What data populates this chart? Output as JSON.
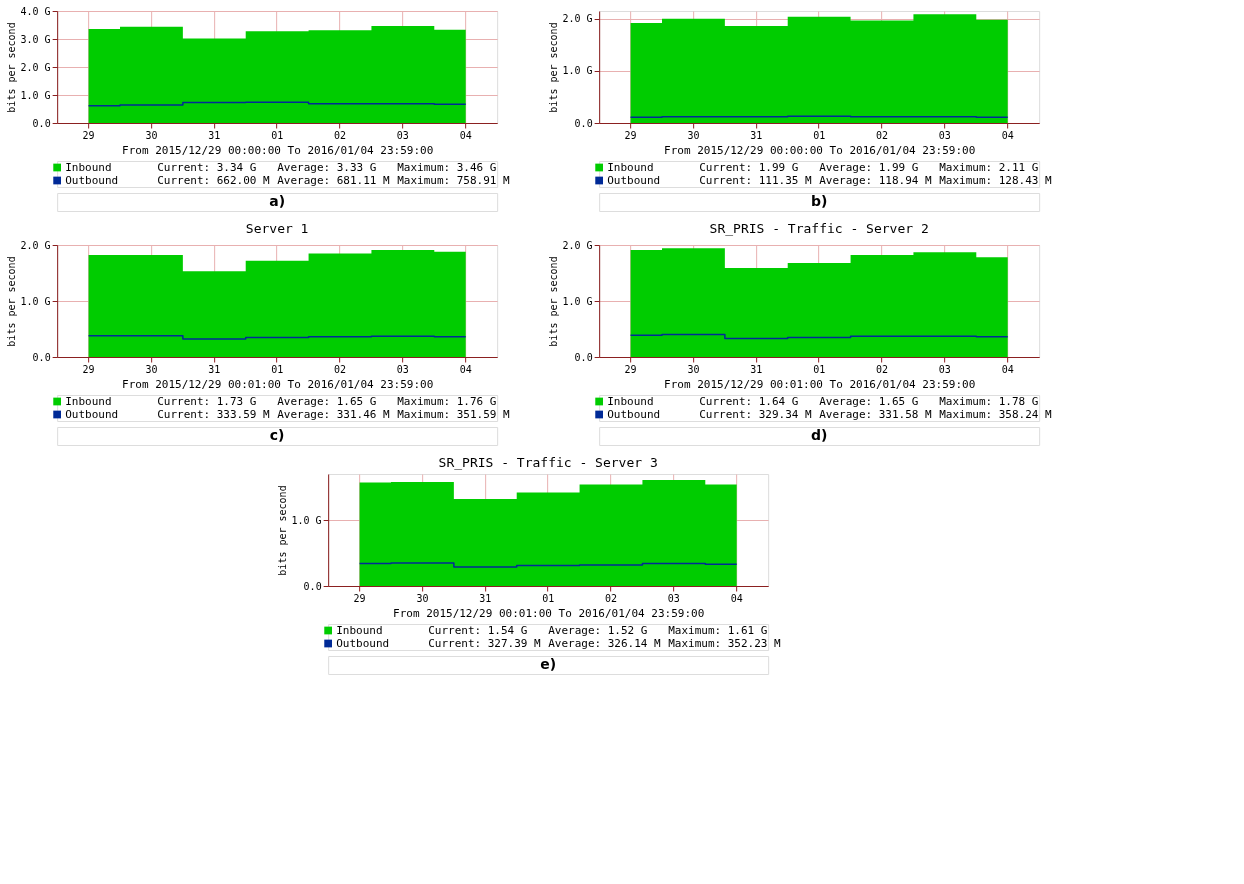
{
  "chart_data": [
    {
      "type": "area",
      "categories": [
        "29",
        "30",
        "31",
        "01",
        "02",
        "03",
        "04"
      ],
      "xlabel": "From 2015/12/29 00:00:00 To 2016/01/04 23:59:00",
      "ylabel": "bits per second",
      "ylim": [
        0,
        4.0
      ],
      "yticks": [
        {
          "value": 0,
          "label": "0.0"
        },
        {
          "value": 1,
          "label": "1.0 G"
        },
        {
          "value": 2,
          "label": "2.0 G"
        },
        {
          "value": 3,
          "label": "3.0 G"
        },
        {
          "value": 4,
          "label": "4.0 G"
        }
      ],
      "grid": true,
      "legend": "bottom",
      "series": [
        {
          "name": "Inbound",
          "type": "area",
          "color": "#00cc00",
          "values": [
            3.36,
            3.44,
            3.02,
            3.28,
            3.31,
            3.46,
            3.33
          ]
        },
        {
          "name": "Outbound",
          "type": "line",
          "color": "#002a97",
          "values": [
            0.62,
            0.64,
            0.73,
            0.74,
            0.69,
            0.69,
            0.67
          ]
        }
      ],
      "annotations": [
        "Current:    3.34 G",
        "Average:    3.33 G",
        "Maximum:    3.46 G",
        "Current:  662.00 M",
        "Average:  681.11 M",
        "Maximum:  758.91 M",
        "a)"
      ]
    },
    {
      "type": "area",
      "categories": [
        "29",
        "30",
        "31",
        "01",
        "02",
        "03",
        "04"
      ],
      "xlabel": "From 2015/12/29 00:00:00 To 2016/01/04 23:59:00",
      "ylabel": "bits per second",
      "ylim": [
        0,
        2.15
      ],
      "yticks": [
        {
          "value": 0,
          "label": "0.0"
        },
        {
          "value": 1,
          "label": "1.0 G"
        },
        {
          "value": 2,
          "label": "2.0 G"
        }
      ],
      "grid": true,
      "legend": "bottom",
      "series": [
        {
          "name": "Inbound",
          "type": "area",
          "color": "#00cc00",
          "values": [
            1.92,
            2.0,
            1.86,
            2.04,
            1.97,
            2.09,
            1.98
          ]
        },
        {
          "name": "Outbound",
          "type": "line",
          "color": "#002a97",
          "values": [
            0.11,
            0.12,
            0.12,
            0.13,
            0.12,
            0.12,
            0.11
          ]
        }
      ],
      "annotations": [
        "Current:    1.99 G",
        "Average:    1.99 G",
        "Maximum:    2.11 G",
        "Current:  111.35 M",
        "Average:  118.94 M",
        "Maximum:  128.43 M",
        "b)"
      ]
    },
    {
      "type": "area",
      "title": "Server 1",
      "categories": [
        "29",
        "30",
        "31",
        "01",
        "02",
        "03",
        "04"
      ],
      "xlabel": "From 2015/12/29 00:01:00 To 2016/01/04 23:59:00",
      "ylabel": "bits per second",
      "ylim": [
        0,
        2.0
      ],
      "yticks": [
        {
          "value": 0,
          "label": "0.0"
        },
        {
          "value": 1,
          "label": "1.0 G"
        },
        {
          "value": 2,
          "label": "2.0 G"
        }
      ],
      "grid": true,
      "legend": "bottom",
      "series": [
        {
          "name": "Inbound",
          "type": "area",
          "color": "#00cc00",
          "values": [
            1.82,
            1.82,
            1.53,
            1.72,
            1.85,
            1.91,
            1.88
          ]
        },
        {
          "name": "Outbound",
          "type": "line",
          "color": "#002a97",
          "values": [
            0.38,
            0.38,
            0.32,
            0.35,
            0.36,
            0.37,
            0.36
          ]
        }
      ],
      "annotations": [
        "Current:    1.73 G",
        "Average:    1.65 G",
        "Maximum:    1.76 G",
        "Current:  333.59 M",
        "Average:  331.46 M",
        "Maximum:  351.59 M",
        "c)"
      ]
    },
    {
      "type": "area",
      "title": "SR_PRIS - Traffic - Server 2",
      "categories": [
        "29",
        "30",
        "31",
        "01",
        "02",
        "03",
        "04"
      ],
      "xlabel": "From 2015/12/29 00:01:00 To 2016/01/04 23:59:00",
      "ylabel": "bits per second",
      "ylim": [
        0,
        2.0
      ],
      "yticks": [
        {
          "value": 0,
          "label": "0.0"
        },
        {
          "value": 1,
          "label": "1.0 G"
        },
        {
          "value": 2,
          "label": "2.0 G"
        }
      ],
      "grid": true,
      "legend": "bottom",
      "series": [
        {
          "name": "Inbound",
          "type": "area",
          "color": "#00cc00",
          "values": [
            1.91,
            1.94,
            1.59,
            1.68,
            1.82,
            1.87,
            1.78
          ]
        },
        {
          "name": "Outbound",
          "type": "line",
          "color": "#002a97",
          "values": [
            0.39,
            0.4,
            0.33,
            0.35,
            0.37,
            0.37,
            0.36
          ]
        }
      ],
      "annotations": [
        "Current:    1.64 G",
        "Average:    1.65 G",
        "Maximum:    1.78 G",
        "Current:  329.34 M",
        "Average:  331.58 M",
        "Maximum:  358.24 M",
        "d)"
      ]
    },
    {
      "type": "area",
      "title": "SR_PRIS - Traffic - Server 3",
      "categories": [
        "29",
        "30",
        "31",
        "01",
        "02",
        "03",
        "04"
      ],
      "xlabel": "From 2015/12/29 00:01:00 To 2016/01/04 23:59:00",
      "ylabel": "bits per second",
      "ylim": [
        0,
        1.7
      ],
      "yticks": [
        {
          "value": 0,
          "label": "0.0"
        },
        {
          "value": 1,
          "label": "1.0 G"
        }
      ],
      "grid": true,
      "legend": "bottom",
      "series": [
        {
          "name": "Inbound",
          "type": "area",
          "color": "#00cc00",
          "values": [
            1.57,
            1.58,
            1.32,
            1.42,
            1.54,
            1.61,
            1.54
          ]
        },
        {
          "name": "Outbound",
          "type": "line",
          "color": "#002a97",
          "values": [
            0.34,
            0.35,
            0.29,
            0.31,
            0.32,
            0.34,
            0.33
          ]
        }
      ],
      "annotations": [
        "Current:    1.54 G",
        "Average:    1.52 G",
        "Maximum:    1.61 G",
        "Current:  327.39 M",
        "Average:  326.14 M",
        "Maximum:  352.23 M",
        "e)"
      ]
    }
  ]
}
